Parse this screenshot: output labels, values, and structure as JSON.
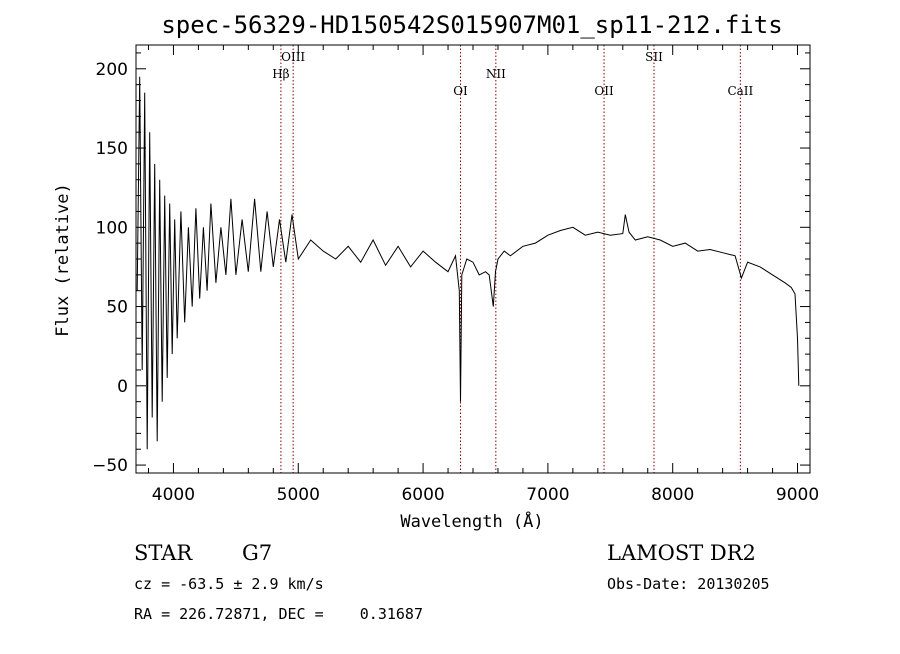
{
  "chart_data": {
    "type": "line",
    "title": "spec-56329-HD150542S015907M01_sp11-212.fits",
    "xlabel": "Wavelength (Å)",
    "ylabel": "Flux (relative)",
    "xlim": [
      3700,
      9100
    ],
    "ylim": [
      -55,
      215
    ],
    "xticks": [
      4000,
      5000,
      6000,
      7000,
      8000,
      9000
    ],
    "yticks": [
      -50,
      0,
      50,
      100,
      150,
      200
    ],
    "grid": false,
    "series": [
      {
        "x": [
          3710,
          3730,
          3750,
          3770,
          3790,
          3810,
          3830,
          3850,
          3870,
          3890,
          3910,
          3930,
          3950,
          3970,
          3990,
          4010,
          4030,
          4060,
          4090,
          4120,
          4150,
          4180,
          4210,
          4240,
          4270,
          4300,
          4340,
          4380,
          4420,
          4460,
          4500,
          4550,
          4600,
          4650,
          4700,
          4750,
          4800,
          4850,
          4900,
          4950,
          5000,
          5100,
          5200,
          5300,
          5400,
          5500,
          5600,
          5700,
          5800,
          5900,
          6000,
          6100,
          6200,
          6260,
          6290,
          6300,
          6310,
          6350,
          6400,
          6450,
          6500,
          6530,
          6563,
          6580,
          6600,
          6650,
          6700,
          6800,
          6900,
          7000,
          7100,
          7200,
          7300,
          7400,
          7500,
          7600,
          7620,
          7650,
          7700,
          7800,
          7900,
          8000,
          8100,
          8200,
          8300,
          8400,
          8500,
          8550,
          8600,
          8700,
          8800,
          8900,
          8950,
          8980,
          9000,
          9010
        ],
        "y": [
          60,
          195,
          10,
          185,
          -40,
          160,
          -20,
          140,
          -35,
          130,
          -10,
          120,
          5,
          115,
          20,
          105,
          30,
          110,
          40,
          100,
          50,
          112,
          55,
          100,
          60,
          115,
          65,
          100,
          70,
          118,
          70,
          105,
          72,
          118,
          72,
          110,
          75,
          105,
          78,
          108,
          80,
          92,
          85,
          80,
          88,
          78,
          92,
          76,
          88,
          75,
          85,
          78,
          72,
          82,
          60,
          -10,
          70,
          80,
          78,
          70,
          72,
          70,
          50,
          72,
          80,
          85,
          82,
          88,
          90,
          95,
          98,
          100,
          95,
          97,
          95,
          96,
          108,
          97,
          92,
          94,
          92,
          88,
          90,
          85,
          86,
          84,
          82,
          68,
          78,
          75,
          70,
          65,
          62,
          58,
          30,
          0
        ]
      }
    ],
    "reference_lines": [
      {
        "label": "Hβ",
        "x": 4861
      },
      {
        "label": "OIII",
        "x": 4959
      },
      {
        "label": "OI",
        "x": 6300
      },
      {
        "label": "NII",
        "x": 6583
      },
      {
        "label": "OII",
        "x": 7450
      },
      {
        "label": "SII",
        "x": 7850
      },
      {
        "label": "CaII",
        "x": 8542
      }
    ]
  },
  "info": {
    "object_class": "STAR",
    "subclass": "G7",
    "survey": "LAMOST DR2",
    "redshift": "cz = -63.5 ± 2.9 km/s",
    "obs_date": "Obs-Date: 20130205",
    "coords": "RA = 226.72871, DEC =    0.31687"
  },
  "colors": {
    "spectrum": "#000000",
    "reference_line": "#8b0000"
  }
}
